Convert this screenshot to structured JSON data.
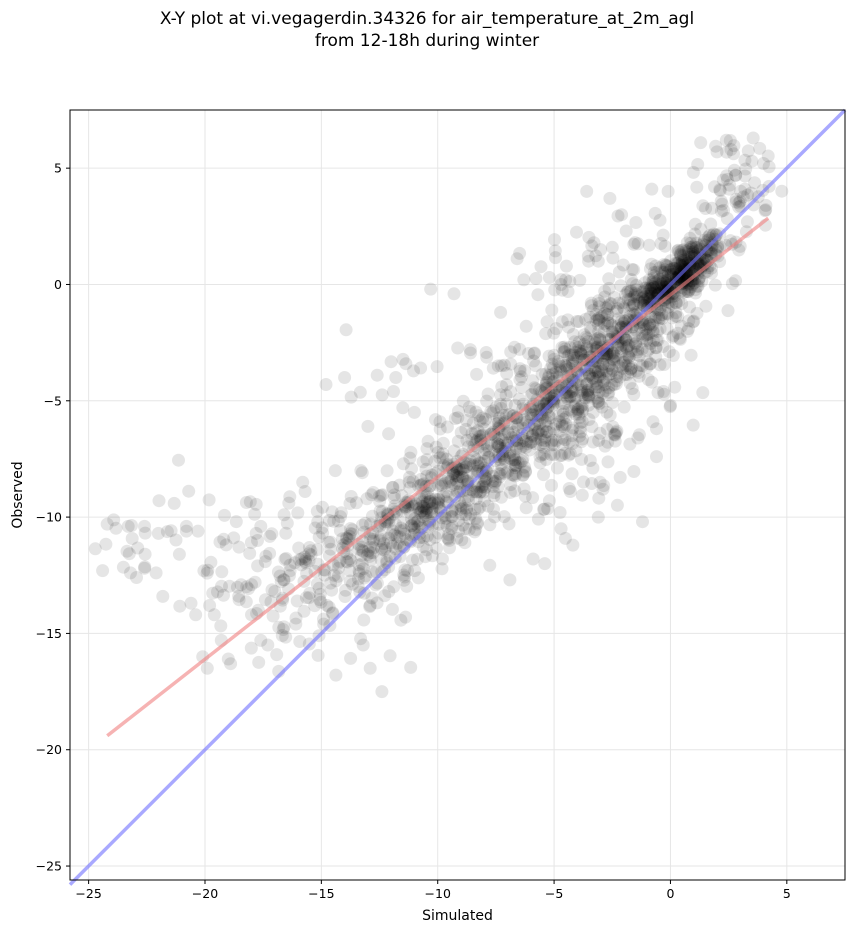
{
  "chart_data": {
    "type": "scatter",
    "title": "X-Y plot at vi.vegagerdin.34326 for air_temperature_at_2m_agl",
    "subtitle": "from 12-18h during winter",
    "xlabel": "Simulated",
    "ylabel": "Observed",
    "xlim": [
      -25.8,
      7.5
    ],
    "ylim": [
      -25.6,
      7.5
    ],
    "xticks": [
      -25,
      -20,
      -15,
      -10,
      -5,
      0,
      5
    ],
    "yticks": [
      -25,
      -20,
      -15,
      -10,
      -5,
      0,
      5
    ],
    "xtick_labels": [
      "−25",
      "−20",
      "−15",
      "−10",
      "−5",
      "0",
      "5"
    ],
    "ytick_labels": [
      "−25",
      "−20",
      "−15",
      "−10",
      "−5",
      "0",
      "5"
    ],
    "grid": true,
    "point_color": "#000000",
    "point_alpha": 0.1,
    "regression_line": {
      "color": "#f08080",
      "x": [
        -24.2,
        4.2
      ],
      "y": [
        -19.4,
        2.85
      ]
    },
    "identity_line": {
      "color": "#7070ff",
      "x": [
        -25.8,
        7.5
      ],
      "y": [
        -25.8,
        7.5
      ]
    },
    "point_clusters": [
      {
        "cx": 0.5,
        "cy": 0.5,
        "sx": 0.9,
        "sy": 0.8,
        "n": 320,
        "rho": 0.7
      },
      {
        "cx": -2.0,
        "cy": -2.2,
        "sx": 1.6,
        "sy": 1.4,
        "n": 420,
        "rho": 0.6
      },
      {
        "cx": -5.0,
        "cy": -5.2,
        "sx": 1.8,
        "sy": 1.6,
        "n": 330,
        "rho": 0.55
      },
      {
        "cx": -8.2,
        "cy": -7.8,
        "sx": 1.6,
        "sy": 1.5,
        "n": 300,
        "rho": 0.6
      },
      {
        "cx": -11.5,
        "cy": -10.3,
        "sx": 1.8,
        "sy": 1.4,
        "n": 220,
        "rho": 0.55
      },
      {
        "cx": -14.5,
        "cy": -12.0,
        "sx": 2.0,
        "sy": 1.6,
        "n": 120,
        "rho": 0.4
      },
      {
        "cx": -18.5,
        "cy": -11.8,
        "sx": 2.3,
        "sy": 1.8,
        "n": 70,
        "rho": 0.1
      },
      {
        "cx": 2.8,
        "cy": 4.2,
        "sx": 0.9,
        "sy": 1.2,
        "n": 60,
        "rho": 0.2
      },
      {
        "cx": -2.5,
        "cy": 1.0,
        "sx": 2.0,
        "sy": 1.4,
        "n": 45,
        "rho": 0.2
      },
      {
        "cx": -9.5,
        "cy": -3.8,
        "sx": 2.2,
        "sy": 1.0,
        "n": 22,
        "rho": 0.0
      },
      {
        "cx": -3.2,
        "cy": -7.8,
        "sx": 1.6,
        "sy": 1.6,
        "n": 45,
        "rho": 0.3
      },
      {
        "cx": -12.8,
        "cy": -15.0,
        "sx": 1.0,
        "sy": 1.2,
        "n": 10,
        "rho": 0.0
      },
      {
        "cx": -22.8,
        "cy": -11.0,
        "sx": 1.2,
        "sy": 1.0,
        "n": 14,
        "rho": 0.0
      }
    ],
    "points": [
      [
        -24.2,
        -10.3
      ],
      [
        -23.3,
        -10.4
      ],
      [
        -22.6,
        -10.4
      ],
      [
        -22.0,
        -10.7
      ],
      [
        -24.4,
        -12.3
      ],
      [
        -23.2,
        -12.4
      ],
      [
        -22.6,
        -12.2
      ],
      [
        -22.1,
        -12.4
      ],
      [
        -21.1,
        -11.6
      ],
      [
        -20.8,
        -10.4
      ],
      [
        -20.3,
        -10.6
      ],
      [
        -20.6,
        -13.7
      ],
      [
        -20.4,
        -14.2
      ],
      [
        -19.9,
        -16.5
      ],
      [
        -20.1,
        -16.0
      ],
      [
        -19.0,
        -16.1
      ],
      [
        -18.9,
        -16.3
      ],
      [
        -19.3,
        -15.3
      ],
      [
        -19.6,
        -14.2
      ],
      [
        -19.8,
        -13.8
      ],
      [
        -10.3,
        -0.2
      ],
      [
        -9.3,
        -0.4
      ],
      [
        -14.8,
        -4.3
      ],
      [
        -14.0,
        -4.0
      ],
      [
        -12.4,
        -17.5
      ],
      [
        -12.9,
        -16.5
      ],
      [
        -13.2,
        -15.5
      ],
      [
        -6.9,
        -12.7
      ],
      [
        -5.4,
        -12.0
      ],
      [
        -4.7,
        -10.5
      ],
      [
        -5.9,
        -11.8
      ],
      [
        -3.1,
        -10.0
      ],
      [
        -3.6,
        4.0
      ],
      [
        -2.6,
        3.7
      ],
      [
        -2.1,
        3.0
      ],
      [
        -0.8,
        4.1
      ],
      [
        -0.1,
        4.0
      ],
      [
        1.3,
        6.1
      ],
      [
        2.4,
        6.2
      ],
      [
        2.0,
        5.7
      ],
      [
        2.6,
        5.8
      ],
      [
        3.5,
        5.3
      ],
      [
        4.0,
        5.2
      ],
      [
        4.1,
        3.4
      ],
      [
        3.2,
        4.1
      ],
      [
        2.8,
        4.7
      ],
      [
        -1.9,
        2.3
      ],
      [
        -2.5,
        1.6
      ],
      [
        -3.1,
        1.0
      ],
      [
        -3.0,
        1.5
      ],
      [
        -4.7,
        0.0
      ],
      [
        -6.3,
        0.2
      ],
      [
        -5.2,
        0.3
      ],
      [
        -4.5,
        0.2
      ],
      [
        -0.8,
        -4.2
      ],
      [
        -0.3,
        -4.6
      ],
      [
        0.0,
        -5.2
      ],
      [
        -0.6,
        -6.2
      ],
      [
        -0.6,
        -7.4
      ],
      [
        -1.4,
        -6.6
      ],
      [
        -2.3,
        -6.3
      ],
      [
        -2.9,
        -8.8
      ],
      [
        -4.3,
        -8.9
      ],
      [
        -5.2,
        -9.3
      ],
      [
        -6.2,
        -9.6
      ],
      [
        -8.8,
        -9.9
      ],
      [
        -9.8,
        -11.8
      ],
      [
        -11.3,
        -12.3
      ],
      [
        -12.1,
        -13.2
      ],
      [
        -12.9,
        -13.8
      ],
      [
        -14.9,
        -14.6
      ],
      [
        -15.1,
        -15.1
      ],
      [
        -16.1,
        -14.6
      ],
      [
        -17.6,
        -15.3
      ],
      [
        -17.3,
        -15.5
      ],
      [
        -18.0,
        -14.2
      ],
      [
        -18.0,
        -12.9
      ],
      [
        -17.0,
        -13.2
      ],
      [
        -16.6,
        -12.7
      ],
      [
        -17.6,
        -10.4
      ],
      [
        -17.8,
        -10.7
      ],
      [
        -16.6,
        -9.9
      ],
      [
        -16.4,
        -9.4
      ],
      [
        -15.8,
        -8.5
      ],
      [
        -15.7,
        -8.9
      ],
      [
        -14.4,
        -8.0
      ],
      [
        -13.3,
        -8.0
      ],
      [
        -13.0,
        -6.1
      ],
      [
        -11.5,
        -5.3
      ],
      [
        -11.0,
        -5.5
      ],
      [
        -9.9,
        -5.9
      ],
      [
        -11.8,
        -4.0
      ],
      [
        -12.6,
        -3.9
      ],
      [
        -11.9,
        -4.6
      ],
      [
        -8.6,
        -2.8
      ],
      [
        -7.4,
        -3.5
      ],
      [
        -6.7,
        -2.7
      ],
      [
        -7.3,
        -1.2
      ],
      [
        -6.2,
        -1.8
      ],
      [
        -5.3,
        -1.6
      ],
      [
        -5.1,
        -1.1
      ],
      [
        -4.4,
        -0.3
      ],
      [
        -3.4,
        -0.8
      ]
    ]
  }
}
